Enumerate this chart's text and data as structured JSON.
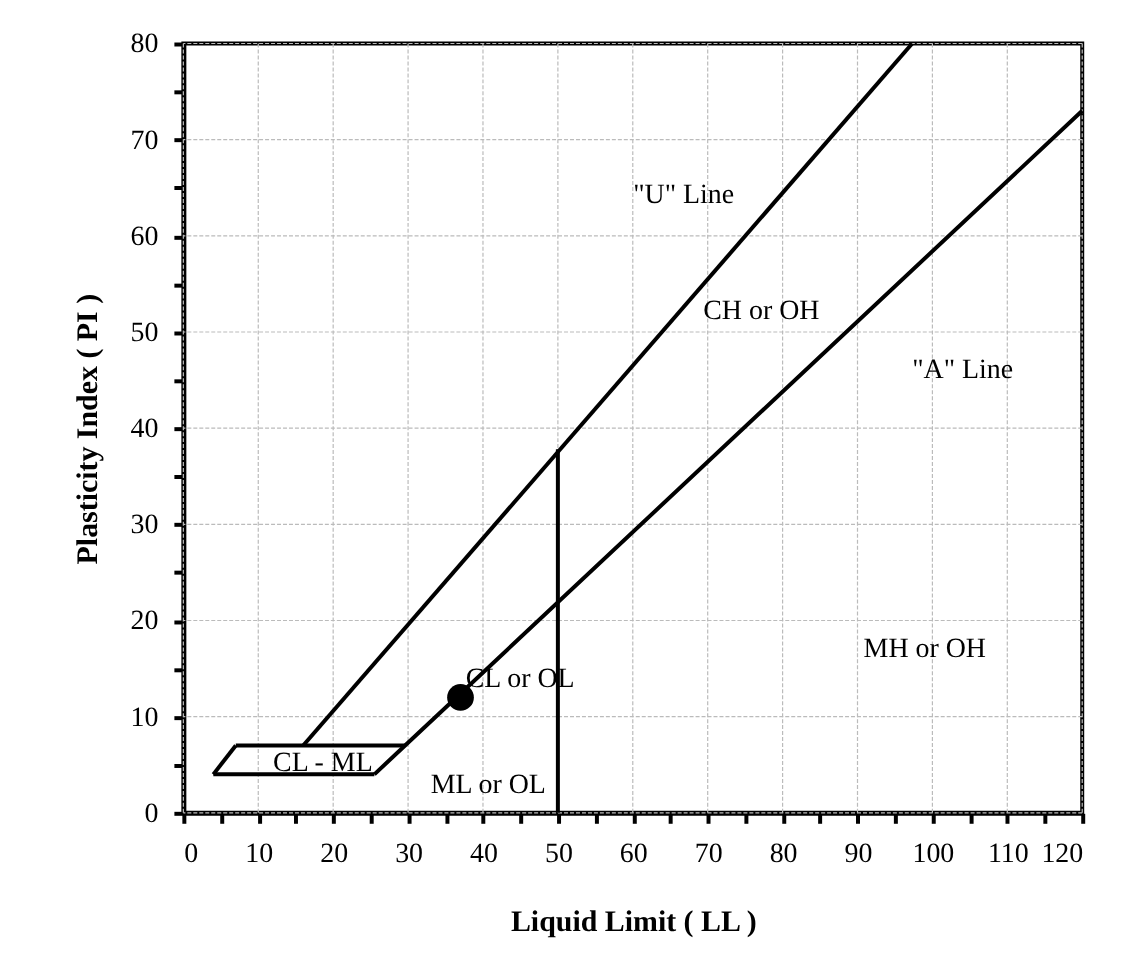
{
  "chart_data": {
    "type": "line",
    "xlabel": "Liquid Limit ( LL )",
    "ylabel": "Plasticity Index ( PI )",
    "xlim": [
      0,
      120
    ],
    "ylim": [
      0,
      80
    ],
    "xticks": [
      0,
      {
        "value": 5,
        "label": null
      },
      10,
      {
        "value": 15,
        "label": null
      },
      20,
      {
        "value": 25,
        "label": null
      },
      30,
      {
        "value": 35,
        "label": null
      },
      40,
      {
        "value": 45,
        "label": null
      },
      50,
      {
        "value": 55,
        "label": null
      },
      60,
      {
        "value": 65,
        "label": null
      },
      70,
      {
        "value": 75,
        "label": null
      },
      80,
      {
        "value": 85,
        "label": null
      },
      90,
      {
        "value": 95,
        "label": null
      },
      100,
      {
        "value": 105,
        "label": null
      },
      110,
      {
        "value": 115,
        "label": null
      },
      120
    ],
    "yticks": [
      0,
      {
        "value": 5,
        "label": null
      },
      10,
      {
        "value": 15,
        "label": null
      },
      20,
      {
        "value": 25,
        "label": null
      },
      30,
      {
        "value": 35,
        "label": null
      },
      40,
      {
        "value": 45,
        "label": null
      },
      50,
      {
        "value": 55,
        "label": null
      },
      60,
      {
        "value": 65,
        "label": null
      },
      70,
      {
        "value": 75,
        "label": null
      },
      80
    ],
    "grid": true,
    "series": [
      {
        "color": "#000000",
        "x": [
          16,
          97.3
        ],
        "values": [
          7,
          80
        ]
      },
      {
        "color": "#000000",
        "x": [
          25.5,
          29.6,
          120
        ],
        "values": [
          4,
          7,
          73
        ]
      },
      {
        "color": "#000000",
        "x": [
          4,
          25.5
        ],
        "values": [
          4,
          4
        ]
      },
      {
        "color": "#000000",
        "x": [
          7,
          29.6
        ],
        "values": [
          7,
          7
        ]
      },
      {
        "color": "#000000",
        "x": [
          4,
          7
        ],
        "values": [
          4,
          7
        ]
      },
      {
        "color": "#000000",
        "x": [
          50,
          50
        ],
        "values": [
          0,
          37.8
        ]
      },
      {
        "type": "scatter",
        "color": "#000000",
        "marker": "circle",
        "x": [
          37
        ],
        "values": [
          12
        ]
      }
    ],
    "annotations": [
      "\"U\" Line",
      "CH or OH",
      "\"A\" Line",
      "CL or OL",
      "MH or OH",
      "ML or OL",
      "CL - ML"
    ]
  }
}
